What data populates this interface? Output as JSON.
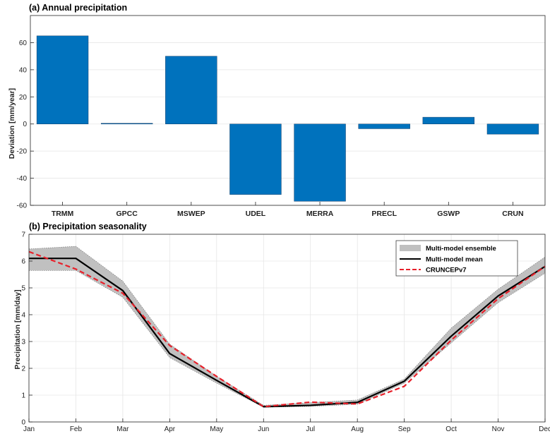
{
  "chart_data": [
    {
      "type": "bar",
      "title": "(a) Annual precipitation",
      "xlabel": "",
      "ylabel": "Deviation [mm/year]",
      "ylim": [
        -60,
        80
      ],
      "yticks": [
        -60,
        -40,
        -20,
        0,
        20,
        40,
        60
      ],
      "categories": [
        "TRMM",
        "GPCC",
        "MSWEP",
        "UDEL",
        "MERRA",
        "PRECL",
        "GSWP",
        "CRUN"
      ],
      "values": [
        65,
        0.5,
        50,
        -52,
        -57,
        -3.5,
        5,
        -7.5
      ],
      "grid": true,
      "bar_color": "#0072BD"
    },
    {
      "type": "line",
      "title": "(b) Precipitation seasonality",
      "xlabel": "",
      "ylabel": "Precipitation [mm/day]",
      "ylim": [
        0,
        7
      ],
      "yticks": [
        0,
        1,
        2,
        3,
        4,
        5,
        6,
        7
      ],
      "categories": [
        "Jan",
        "Feb",
        "Mar",
        "Apr",
        "May",
        "Jun",
        "Jul",
        "Aug",
        "Sep",
        "Oct",
        "Nov",
        "Dec"
      ],
      "grid": true,
      "legend_position": "top-right",
      "ensemble": {
        "name": "Multi-model ensemble",
        "color": "#c0c0c0",
        "lower": [
          5.65,
          5.65,
          4.65,
          2.4,
          1.45,
          0.55,
          0.58,
          0.66,
          1.45,
          2.95,
          4.45,
          5.55
        ],
        "upper": [
          6.45,
          6.55,
          5.25,
          2.9,
          1.7,
          0.62,
          0.72,
          0.82,
          1.6,
          3.5,
          4.95,
          6.15
        ]
      },
      "series": [
        {
          "name": "Multi-model mean",
          "color": "#000000",
          "style": "solid",
          "values": [
            6.1,
            6.1,
            4.9,
            2.55,
            1.55,
            0.57,
            0.62,
            0.73,
            1.52,
            3.2,
            4.7,
            5.8
          ]
        },
        {
          "name": "CRUNCEPv7",
          "color": "#e8202a",
          "style": "dashed",
          "values": [
            6.35,
            5.7,
            4.8,
            2.85,
            1.7,
            0.57,
            0.74,
            0.67,
            1.33,
            3.05,
            4.6,
            5.8
          ]
        }
      ]
    }
  ]
}
